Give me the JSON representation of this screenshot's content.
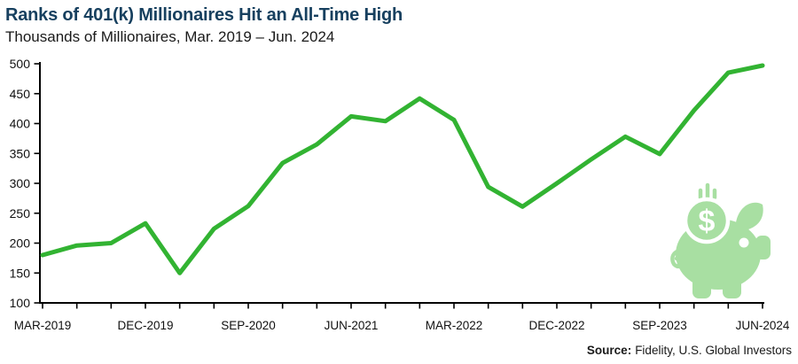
{
  "header": {
    "title": "Ranks of 401(k) Millionaires Hit an All-Time High",
    "subtitle": "Thousands of Millionaires, Mar. 2019 – Jun. 2024"
  },
  "footer": {
    "source_label": "Source:",
    "source_text": "Fidelity, U.S. Global Investors"
  },
  "icons": {
    "piggy_bank": "piggy-bank-icon",
    "dollar_sign": "$"
  },
  "colors": {
    "title": "#17405F",
    "line": "#32B332",
    "pig": "#A8DFA2",
    "axis": "#000000",
    "text": "#1A1A1A"
  },
  "chart_data": {
    "type": "line",
    "title": "Ranks of 401(k) Millionaires Hit an All-Time High",
    "ylabel": "Thousands of Millionaires",
    "xlabel": "",
    "grid": false,
    "legend": "none",
    "ylim": [
      100,
      500
    ],
    "y_ticks": [
      100,
      150,
      200,
      250,
      300,
      350,
      400,
      450,
      500
    ],
    "x": [
      "Mar-2019",
      "Jun-2019",
      "Sep-2019",
      "Dec-2019",
      "Mar-2020",
      "Jun-2020",
      "Sep-2020",
      "Dec-2020",
      "Mar-2021",
      "Jun-2021",
      "Sep-2021",
      "Dec-2021",
      "Mar-2022",
      "Jun-2022",
      "Sep-2022",
      "Dec-2022",
      "Mar-2023",
      "Jun-2023",
      "Sep-2023",
      "Dec-2023",
      "Mar-2024",
      "Jun-2024"
    ],
    "values": [
      180,
      196,
      200,
      233,
      150,
      224,
      262,
      334,
      365,
      412,
      404,
      442,
      406,
      294,
      261,
      300,
      340,
      378,
      349,
      422,
      485,
      497
    ],
    "x_tick_labels": [
      "MAR-2019",
      "DEC-2019",
      "SEP-2020",
      "JUN-2021",
      "MAR-2022",
      "DEC-2022",
      "SEP-2023",
      "JUN-2024"
    ],
    "x_tick_label_indices": [
      0,
      3,
      6,
      9,
      12,
      15,
      18,
      21
    ],
    "line_color": "#32B332"
  }
}
